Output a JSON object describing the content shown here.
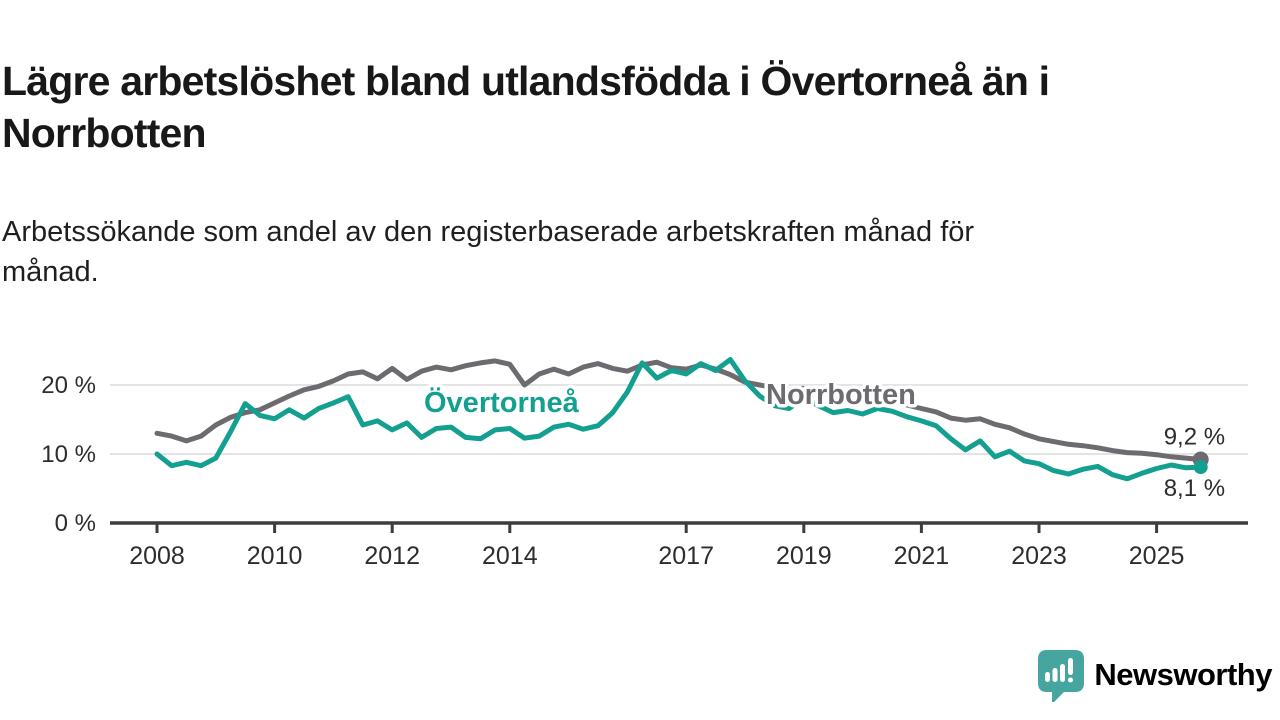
{
  "header": {
    "title_lines": [
      "Lägre arbetslöshet bland utlandsfödda i Övertorneå än i",
      "Norrbotten"
    ],
    "subtitle_lines": [
      "Arbetssökande som andel av den registerbaserade arbetskraften månad för",
      "månad."
    ]
  },
  "chart_data": {
    "type": "line",
    "title": "Lägre arbetslöshet bland utlandsfödda i Övertorneå än i Norrbotten",
    "subtitle": "Arbetssökande som andel av den registerbaserade arbetskraften månad för månad.",
    "x_unit": "year (quarterly samples)",
    "x_start": 2008.0,
    "x_step": 0.25,
    "x_end": 2025.75,
    "ylim": [
      0,
      26
    ],
    "grid": "horizontal",
    "legend": "inline-labels-on-lines",
    "colors": {
      "grid": "#dcdcdc",
      "axis": "#3d3d3d",
      "text": "#2d2d2d"
    },
    "x_ticks": [
      {
        "year": 2008,
        "label": "2008"
      },
      {
        "year": 2010,
        "label": "2010"
      },
      {
        "year": 2012,
        "label": "2012"
      },
      {
        "year": 2014,
        "label": "2014"
      },
      {
        "year": 2017,
        "label": "2017"
      },
      {
        "year": 2019,
        "label": "2019"
      },
      {
        "year": 2021,
        "label": "2021"
      },
      {
        "year": 2023,
        "label": "2023"
      },
      {
        "year": 2025,
        "label": "2025"
      }
    ],
    "y_ticks": [
      {
        "value": 0,
        "label": "0 %"
      },
      {
        "value": 10,
        "label": "10 %"
      },
      {
        "value": 20,
        "label": "20 %"
      }
    ],
    "series": [
      {
        "id": "norrbotten",
        "name": "Norrbotten",
        "color": "#6d6b70",
        "end_label": "9,2 %",
        "values": [
          13.0,
          12.6,
          11.9,
          12.6,
          14.2,
          15.3,
          16.0,
          16.4,
          17.4,
          18.4,
          19.3,
          19.8,
          20.6,
          21.6,
          21.9,
          20.9,
          22.4,
          20.8,
          22.0,
          22.6,
          22.2,
          22.8,
          23.2,
          23.5,
          23.0,
          20.0,
          21.6,
          22.3,
          21.6,
          22.6,
          23.1,
          22.4,
          22.0,
          22.9,
          23.3,
          22.5,
          22.3,
          22.9,
          22.3,
          21.5,
          20.4,
          20.0,
          19.6,
          19.3,
          19.5,
          19.0,
          18.4,
          18.0,
          18.5,
          18.0,
          17.6,
          17.1,
          16.6,
          16.1,
          15.2,
          14.9,
          15.1,
          14.3,
          13.8,
          12.9,
          12.2,
          11.8,
          11.4,
          11.2,
          10.9,
          10.5,
          10.2,
          10.1,
          9.9,
          9.6,
          9.4,
          9.2
        ]
      },
      {
        "id": "overtornea",
        "name": "Övertorneå",
        "color": "#14a090",
        "end_label": "8,1 %",
        "values": [
          10.0,
          8.3,
          8.8,
          8.3,
          9.4,
          13.2,
          17.3,
          15.6,
          15.1,
          16.4,
          15.2,
          16.6,
          17.4,
          18.3,
          14.2,
          14.8,
          13.5,
          14.5,
          12.4,
          13.7,
          13.9,
          12.4,
          12.2,
          13.5,
          13.7,
          12.3,
          12.6,
          13.9,
          14.3,
          13.6,
          14.1,
          16.0,
          19.0,
          23.2,
          21.0,
          22.1,
          21.6,
          23.1,
          22.1,
          23.7,
          20.6,
          18.4,
          17.0,
          16.6,
          18.1,
          17.0,
          16.0,
          16.3,
          15.8,
          16.6,
          16.2,
          15.4,
          14.8,
          14.1,
          12.2,
          10.6,
          11.9,
          9.6,
          10.4,
          9.0,
          8.6,
          7.6,
          7.1,
          7.8,
          8.2,
          7.0,
          6.4,
          7.2,
          7.9,
          8.4,
          8.0,
          8.1
        ]
      }
    ]
  },
  "footer": {
    "brand": "Newsworthy",
    "brand_color": "#2f9d98",
    "icon_color": "#47a59f"
  }
}
